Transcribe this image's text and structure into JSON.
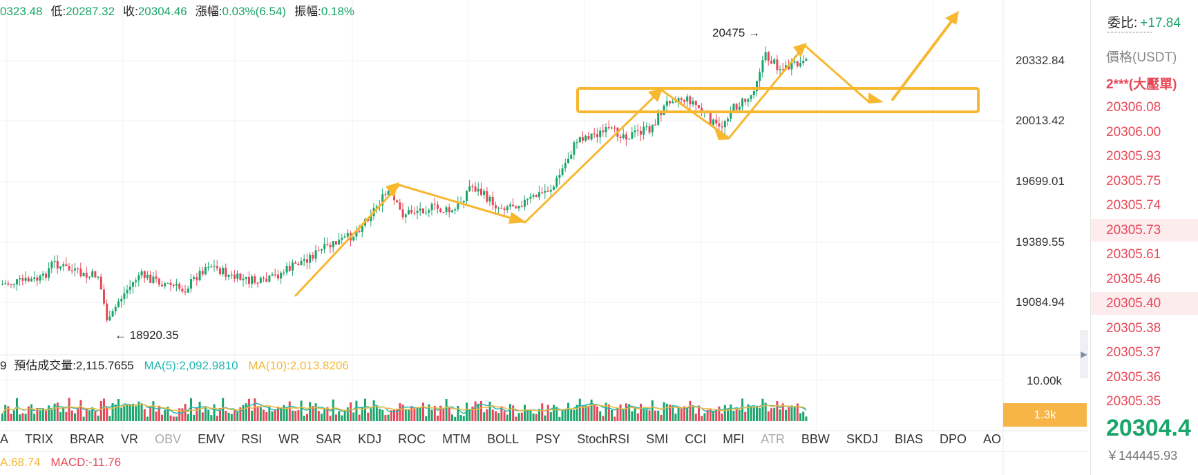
{
  "header_stats": {
    "high_partial": "0323.48",
    "low_label": "低:",
    "low_value": "20287.32",
    "close_label": "收:",
    "close_value": "20304.46",
    "change_label": "漲幅:",
    "change_value": "0.03%(6.54)",
    "amp_label": "振幅:",
    "amp_value": "0.18%"
  },
  "price_axis": [
    "20332.84",
    "20013.42",
    "19699.01",
    "19389.55",
    "19084.94"
  ],
  "annotations": {
    "high_mark": "20475 →",
    "low_mark": "← 18920.35"
  },
  "volume_info": {
    "prefix": "9",
    "est_label": "預估成交量:2,115.7655",
    "ma5": "MA(5):2,092.9810",
    "ma10": "MA(10):2,013.8206"
  },
  "volume_axis": {
    "top": "10.00k",
    "current": "1.3k"
  },
  "indicator_tabs": [
    {
      "label": "A",
      "dim": false
    },
    {
      "label": "TRIX",
      "dim": false
    },
    {
      "label": "BRAR",
      "dim": false
    },
    {
      "label": "VR",
      "dim": false
    },
    {
      "label": "OBV",
      "dim": true
    },
    {
      "label": "EMV",
      "dim": false
    },
    {
      "label": "RSI",
      "dim": false
    },
    {
      "label": "WR",
      "dim": false
    },
    {
      "label": "SAR",
      "dim": false
    },
    {
      "label": "KDJ",
      "dim": false
    },
    {
      "label": "ROC",
      "dim": false
    },
    {
      "label": "MTM",
      "dim": false
    },
    {
      "label": "BOLL",
      "dim": false
    },
    {
      "label": "PSY",
      "dim": false
    },
    {
      "label": "StochRSI",
      "dim": false
    },
    {
      "label": "SMI",
      "dim": false
    },
    {
      "label": "CCI",
      "dim": false
    },
    {
      "label": "MFI",
      "dim": false
    },
    {
      "label": "ATR",
      "dim": true
    },
    {
      "label": "BBW",
      "dim": false
    },
    {
      "label": "SKDJ",
      "dim": false
    },
    {
      "label": "BIAS",
      "dim": false
    },
    {
      "label": "DPO",
      "dim": false
    },
    {
      "label": "AO",
      "dim": false
    }
  ],
  "macd_info": {
    "a": "A:68.74",
    "macd": "MACD:-11.76"
  },
  "order_book": {
    "ratio_label": "委比:",
    "ratio_value": "+17.84",
    "price_col": "價格(USDT)",
    "big_order_title": "2***(大壓單)",
    "asks": [
      {
        "price": "20306.08",
        "hl": false
      },
      {
        "price": "20306.00",
        "hl": false
      },
      {
        "price": "20305.93",
        "hl": false
      },
      {
        "price": "20305.75",
        "hl": false
      },
      {
        "price": "20305.74",
        "hl": false
      },
      {
        "price": "20305.73",
        "hl": true
      },
      {
        "price": "20305.61",
        "hl": false
      },
      {
        "price": "20305.46",
        "hl": false
      },
      {
        "price": "20305.40",
        "hl": true
      },
      {
        "price": "20305.38",
        "hl": false
      },
      {
        "price": "20305.37",
        "hl": false
      },
      {
        "price": "20305.36",
        "hl": false
      },
      {
        "price": "20305.35",
        "hl": false
      }
    ],
    "last_price": "20304.4",
    "cny_value": "￥144445.93"
  },
  "colors": {
    "up": "#1aa56b",
    "down": "#e84757",
    "accent": "#f7b547",
    "ma5": "#23b6b3",
    "ma10": "#f3b73a"
  }
}
